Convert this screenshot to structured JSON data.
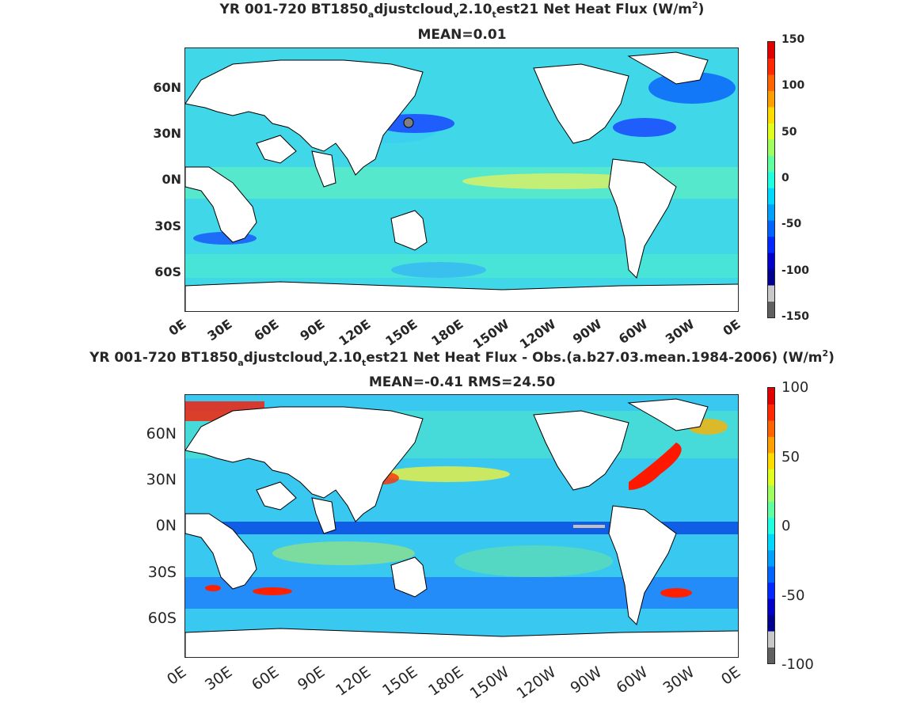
{
  "panels": [
    {
      "title_parts": [
        "YR 001-720 BT1850",
        "a",
        "djustcloud",
        "v",
        "2.10",
        "t",
        "est21  Net Heat Flux (W/m",
        "2",
        ")"
      ],
      "subtitle": "MEAN=0.01",
      "y_ticks": [
        "60N",
        "30N",
        "0N",
        "30S",
        "60S"
      ],
      "x_ticks": [
        "0E",
        "30E",
        "60E",
        "90E",
        "120E",
        "150E",
        "180E",
        "150W",
        "120W",
        "90W",
        "60W",
        "30W",
        "0E"
      ],
      "colorbar": {
        "ticks": [
          "150",
          "100",
          "50",
          "0",
          "-50",
          "-100",
          "-150"
        ],
        "range": [
          -150,
          150
        ]
      }
    },
    {
      "title_parts": [
        "YR 001-720 BT1850",
        "a",
        "djustcloud",
        "v",
        "2.10",
        "t",
        "est21  Net Heat Flux - Obs.(a.b27.03.mean.1984-2006) (W/m",
        "2",
        ")"
      ],
      "subtitle": "MEAN=-0.41 RMS=24.50",
      "y_ticks": [
        "60N",
        "30N",
        "0N",
        "30S",
        "60S"
      ],
      "x_ticks": [
        "0E",
        "30E",
        "60E",
        "90E",
        "120E",
        "150E",
        "180E",
        "150W",
        "120W",
        "90W",
        "60W",
        "30W",
        "0E"
      ],
      "colorbar": {
        "ticks": [
          "100",
          "50",
          "0",
          "-50",
          "-100"
        ],
        "range": [
          -100,
          100
        ]
      }
    }
  ],
  "colors": {
    "colorbar_scale": [
      "#606060",
      "#c8c8c8",
      "#00008f",
      "#0000c8",
      "#0028ff",
      "#0064ff",
      "#00a0ff",
      "#00d8ff",
      "#20ffe0",
      "#60ff9f",
      "#a0ff60",
      "#e0ff20",
      "#ffdc00",
      "#ffa000",
      "#ff6400",
      "#ff2800",
      "#e00000"
    ],
    "ocean_base_top": "#40e6d8",
    "ocean_base_bottom": "#38c8f0",
    "land": "#ffffff"
  }
}
